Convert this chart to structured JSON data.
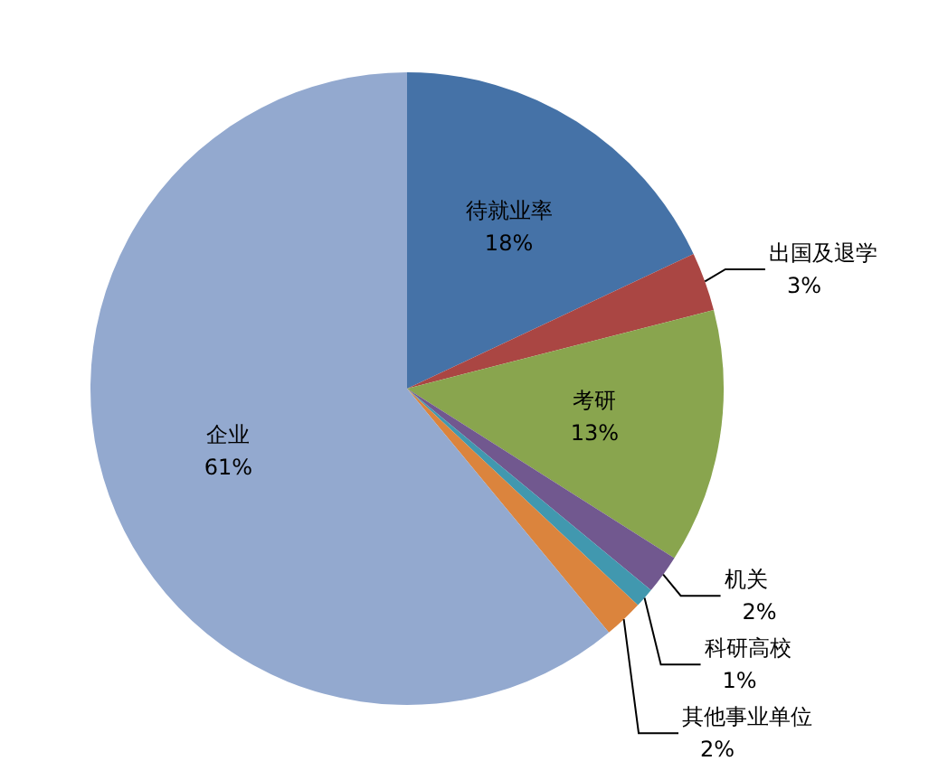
{
  "chart_data": {
    "type": "pie",
    "categories": [
      "待就业率",
      "出国及退学",
      "考研",
      "机关",
      "科研高校",
      "其他事业单位",
      "企业"
    ],
    "values": [
      18,
      3,
      13,
      2,
      1,
      2,
      61
    ],
    "value_labels": [
      "18%",
      "3%",
      "13%",
      "2%",
      "1%",
      "2%",
      "61%"
    ],
    "colors": [
      "#4572a7",
      "#aa4643",
      "#89a54e",
      "#71588f",
      "#4198af",
      "#db843d",
      "#93a9cf"
    ],
    "legend": false
  }
}
